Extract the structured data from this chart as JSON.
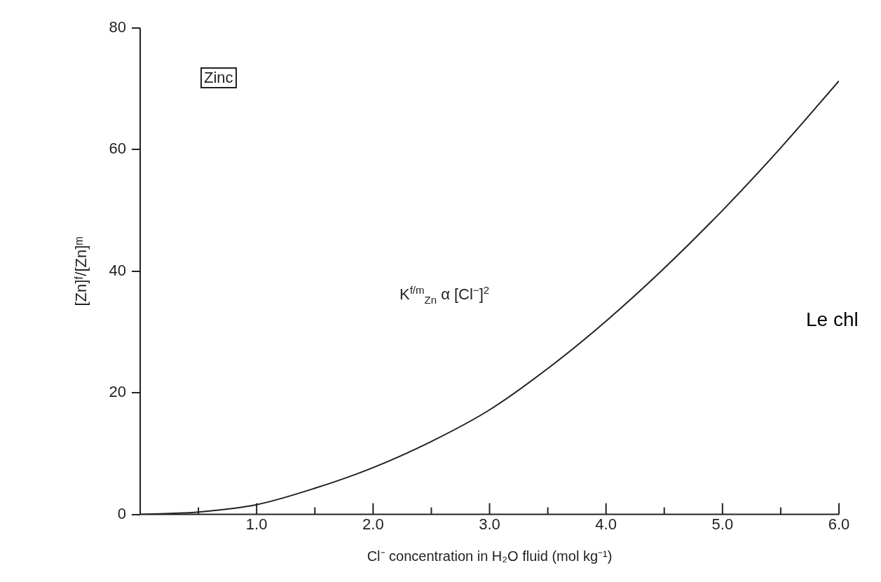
{
  "chart_data": {
    "type": "line",
    "xlabel": "Cl⁻ concentration in H₂O fluid (mol kg⁻¹)",
    "ylabel": "[Zn]ᶠ/[Zn]ᵐ",
    "x": [
      0,
      0.5,
      1,
      1.5,
      2,
      2.5,
      3,
      3.5,
      4,
      4.5,
      5,
      5.5,
      6
    ],
    "series": [
      {
        "color": "#222222",
        "values": [
          0,
          0.4,
          1.6,
          4.3,
          7.7,
          12,
          17.2,
          24,
          31.8,
          40.5,
          50,
          60.3,
          71.3
        ]
      }
    ],
    "xlim": [
      0,
      6
    ],
    "xticks": [
      {
        "value": 0,
        "label": null
      },
      {
        "value": 0.5,
        "label": null
      },
      {
        "value": 1,
        "label": "1.0"
      },
      {
        "value": 1.5,
        "label": null
      },
      {
        "value": 2,
        "label": "2.0"
      },
      {
        "value": 2.5,
        "label": null
      },
      {
        "value": 3,
        "label": "3.0"
      },
      {
        "value": 3.5,
        "label": null
      },
      {
        "value": 4,
        "label": "4.0"
      },
      {
        "value": 4.5,
        "label": null
      },
      {
        "value": 5,
        "label": "5.0"
      },
      {
        "value": 5.5,
        "label": null
      },
      {
        "value": 6,
        "label": "6.0"
      }
    ],
    "ylim": [
      0,
      80
    ],
    "yticks": [
      0,
      20,
      40,
      60,
      80
    ],
    "marker": "none",
    "line_style": "solid",
    "grid": false,
    "legend": false,
    "annotations": [
      "Zinc",
      "K$^{f/m}$$_{Zn}$ α [Cl$^{−}$]$^{2}$",
      "Le chl"
    ]
  }
}
